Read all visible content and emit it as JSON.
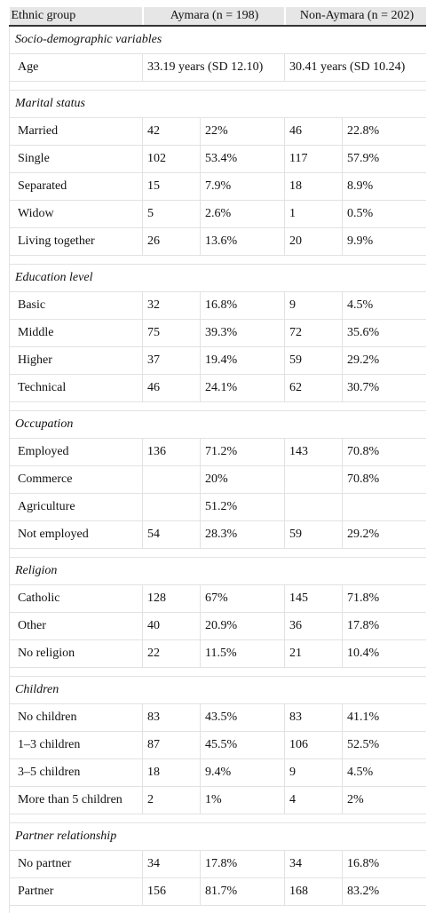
{
  "table": {
    "header": [
      "Ethnic group",
      "Aymara (n = 198)",
      "Non-Aymara (n = 202)"
    ],
    "sections": [
      {
        "title": "Socio-demographic variables",
        "rows": [
          [
            "Age",
            "33.19 years (SD 12.10)",
            "30.41 years (SD 10.24)"
          ]
        ]
      },
      {
        "title": "Marital status",
        "rows": [
          [
            "Married",
            "42",
            "22%",
            "46",
            "22.8%"
          ],
          [
            "Single",
            "102",
            "53.4%",
            "117",
            "57.9%"
          ],
          [
            "Separated",
            "15",
            "7.9%",
            "18",
            "8.9%"
          ],
          [
            "Widow",
            "5",
            "2.6%",
            "1",
            "0.5%"
          ],
          [
            "Living together",
            "26",
            "13.6%",
            "20",
            "9.9%"
          ]
        ]
      },
      {
        "title": "Education level",
        "rows": [
          [
            "Basic",
            "32",
            "16.8%",
            "9",
            "4.5%"
          ],
          [
            "Middle",
            "75",
            "39.3%",
            "72",
            "35.6%"
          ],
          [
            "Higher",
            "37",
            "19.4%",
            "59",
            "29.2%"
          ],
          [
            "Technical",
            "46",
            "24.1%",
            "62",
            "30.7%"
          ]
        ]
      },
      {
        "title": "Occupation",
        "rows": [
          [
            "Employed",
            "136",
            "71.2%",
            "143",
            "70.8%"
          ],
          [
            "Commerce",
            null,
            "20%",
            null,
            "70.8%"
          ],
          [
            "Agriculture",
            null,
            "51.2%",
            null,
            null
          ],
          [
            "Not employed",
            "54",
            "28.3%",
            "59",
            "29.2%"
          ]
        ]
      },
      {
        "title": "Religion",
        "rows": [
          [
            "Catholic",
            "128",
            "67%",
            "145",
            "71.8%"
          ],
          [
            "Other",
            "40",
            "20.9%",
            "36",
            "17.8%"
          ],
          [
            "No religion",
            "22",
            "11.5%",
            "21",
            "10.4%"
          ]
        ]
      },
      {
        "title": "Children",
        "rows": [
          [
            "No children",
            "83",
            "43.5%",
            "83",
            "41.1%"
          ],
          [
            "1–3 children",
            "87",
            "45.5%",
            "106",
            "52.5%"
          ],
          [
            "3–5 children",
            "18",
            "9.4%",
            "9",
            "4.5%"
          ],
          [
            "More than 5 children",
            "2",
            "1%",
            "4",
            "2%"
          ]
        ]
      },
      {
        "title": "Partner relationship",
        "rows": [
          [
            "No partner",
            "34",
            "17.8%",
            "34",
            "16.8%"
          ],
          [
            "Partner",
            "156",
            "81.7%",
            "168",
            "83.2%"
          ]
        ]
      }
    ]
  }
}
